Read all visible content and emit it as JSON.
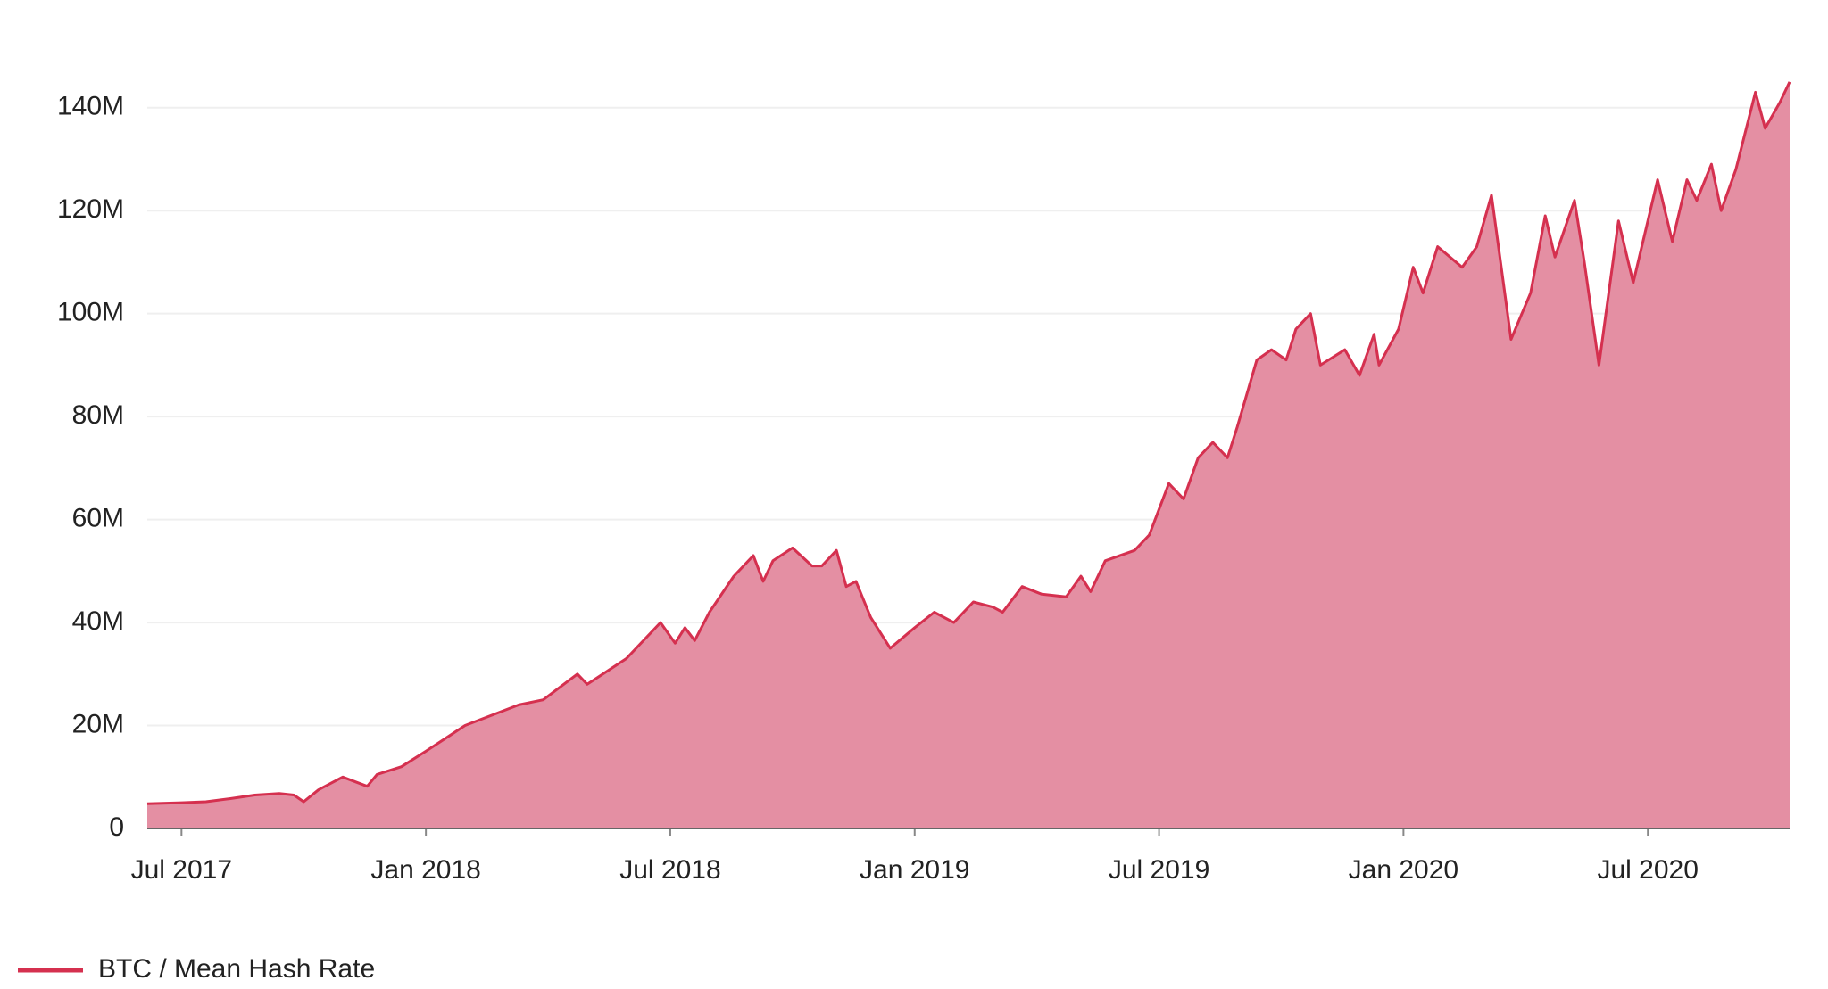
{
  "chart_data": {
    "type": "area",
    "x": [
      2017.43,
      2017.5,
      2017.55,
      2017.6,
      2017.65,
      2017.7,
      2017.73,
      2017.75,
      2017.78,
      2017.83,
      2017.88,
      2017.9,
      2017.95,
      2018.0,
      2018.08,
      2018.19,
      2018.24,
      2018.31,
      2018.33,
      2018.41,
      2018.48,
      2018.51,
      2018.53,
      2018.55,
      2018.58,
      2018.63,
      2018.67,
      2018.69,
      2018.71,
      2018.75,
      2018.79,
      2018.81,
      2018.84,
      2018.86,
      2018.88,
      2018.91,
      2018.95,
      2019.0,
      2019.04,
      2019.08,
      2019.12,
      2019.16,
      2019.18,
      2019.22,
      2019.26,
      2019.31,
      2019.34,
      2019.36,
      2019.39,
      2019.45,
      2019.48,
      2019.52,
      2019.55,
      2019.58,
      2019.61,
      2019.64,
      2019.66,
      2019.7,
      2019.73,
      2019.76,
      2019.78,
      2019.81,
      2019.83,
      2019.88,
      2019.91,
      2019.94,
      2019.95,
      2019.99,
      2020.02,
      2020.04,
      2020.07,
      2020.12,
      2020.15,
      2020.18,
      2020.22,
      2020.26,
      2020.29,
      2020.31,
      2020.35,
      2020.37,
      2020.4,
      2020.44,
      2020.47,
      2020.52,
      2020.55,
      2020.58,
      2020.6,
      2020.63,
      2020.65,
      2020.68,
      2020.72,
      2020.74,
      2020.77,
      2020.79
    ],
    "series": [
      {
        "name": "BTC / Mean Hash Rate",
        "color": "#d5304f",
        "fill": "#e48fa3",
        "values": [
          4800000,
          5000000,
          5200000,
          5800000,
          6500000,
          6800000,
          6500000,
          5200000,
          7500000,
          10000000,
          8200000,
          10500000,
          12000000,
          15000000,
          20000000,
          24000000,
          25000000,
          30000000,
          28000000,
          33000000,
          40000000,
          36000000,
          39000000,
          36500000,
          42000000,
          49000000,
          53000000,
          48000000,
          52000000,
          54500000,
          51000000,
          51000000,
          54000000,
          47000000,
          48000000,
          41000000,
          35000000,
          39000000,
          42000000,
          40000000,
          44000000,
          43000000,
          42000000,
          47000000,
          45500000,
          45000000,
          49000000,
          46000000,
          52000000,
          54000000,
          57000000,
          67000000,
          64000000,
          72000000,
          75000000,
          72000000,
          78000000,
          91000000,
          93000000,
          91000000,
          97000000,
          100000000,
          90000000,
          93000000,
          88000000,
          96000000,
          90000000,
          97000000,
          109000000,
          104000000,
          113000000,
          109000000,
          113000000,
          123000000,
          95000000,
          104000000,
          119000000,
          111000000,
          122000000,
          110000000,
          90000000,
          118000000,
          106000000,
          126000000,
          114000000,
          126000000,
          122000000,
          129000000,
          120000000,
          128000000,
          143000000,
          136000000,
          141000000,
          145000000
        ]
      }
    ],
    "xlim": [
      2017.43,
      2020.79
    ],
    "xticks": [
      {
        "value": 2017.5,
        "label": "Jul 2017"
      },
      {
        "value": 2018.0,
        "label": "Jan 2018"
      },
      {
        "value": 2018.5,
        "label": "Jul 2018"
      },
      {
        "value": 2019.0,
        "label": "Jan 2019"
      },
      {
        "value": 2019.5,
        "label": "Jul 2019"
      },
      {
        "value": 2020.0,
        "label": "Jan 2020"
      },
      {
        "value": 2020.5,
        "label": "Jul 2020"
      }
    ],
    "ylim": [
      0,
      150000000
    ],
    "yticks": [
      0,
      {
        "value": 20000000,
        "label": "20M"
      },
      {
        "value": 40000000,
        "label": "40M"
      },
      {
        "value": 60000000,
        "label": "60M"
      },
      {
        "value": 80000000,
        "label": "80M"
      },
      {
        "value": 100000000,
        "label": "100M"
      },
      {
        "value": 120000000,
        "label": "120M"
      },
      {
        "value": 140000000,
        "label": "140M"
      }
    ],
    "grid": true
  }
}
